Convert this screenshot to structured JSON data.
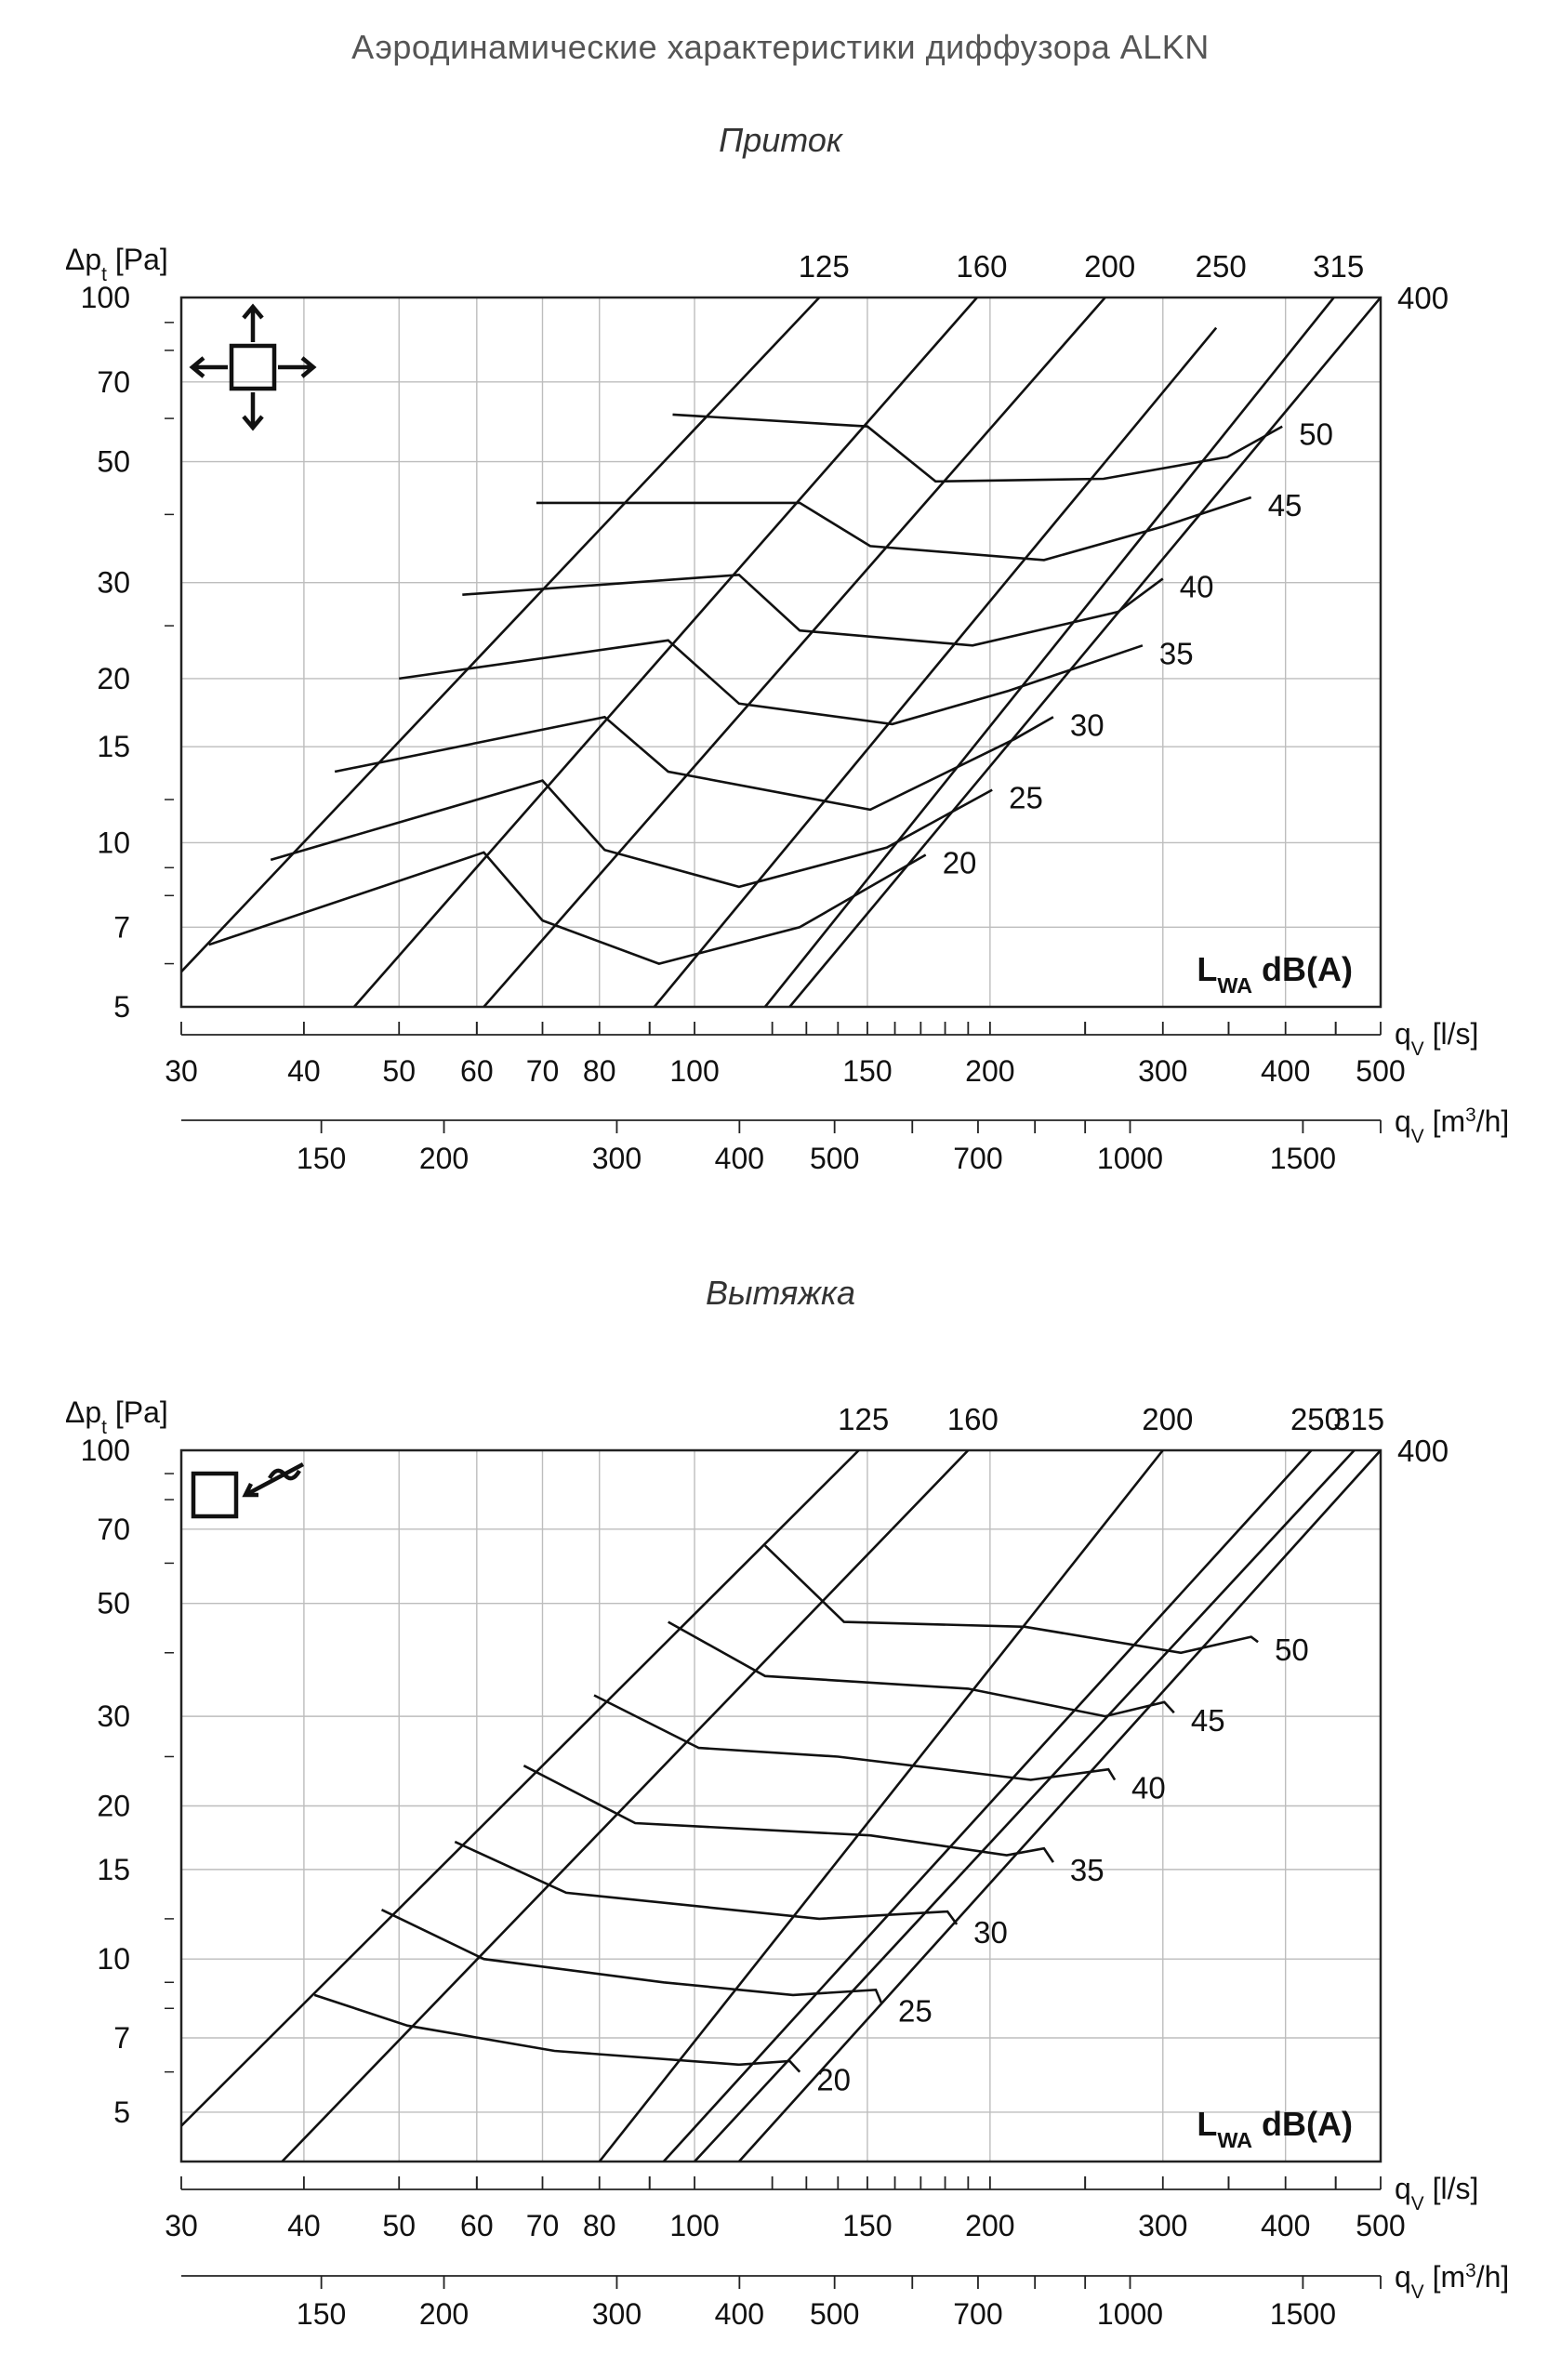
{
  "page": {
    "title": "Аэродинамические характеристики диффузора ALKN"
  },
  "chart_data": [
    {
      "type": "line",
      "subtitle": "Приток",
      "ylabel_main": "Δp",
      "ylabel_sub": "t",
      "ylabel_unit": " [Pa]",
      "xlabel_ls": "q",
      "xlabel_ls_sub": "V",
      "xlabel_ls_unit": " [l/s]",
      "xlabel_m3h": "q",
      "xlabel_m3h_sub": "V",
      "xlabel_m3h_unit_pre": " [m",
      "xlabel_m3h_sup": "3",
      "xlabel_m3h_unit_post": "/h]",
      "xscale": "log",
      "yscale": "log",
      "xlim": [
        30,
        500
      ],
      "ylim": [
        5,
        100
      ],
      "y_ticks": [
        5,
        7,
        10,
        15,
        20,
        30,
        50,
        70,
        100
      ],
      "x_ticks_ls": [
        30,
        40,
        50,
        60,
        70,
        80,
        100,
        150,
        200,
        300,
        400,
        500
      ],
      "x_ticks_m3h": [
        150,
        200,
        300,
        400,
        500,
        700,
        1000,
        1500
      ],
      "grid": true,
      "icon": "four-way-arrows-icon",
      "noise_label_main": "L",
      "noise_label_sub": "WA",
      "noise_label_unit": " dB(A)",
      "size_lines": [
        {
          "name": "125",
          "points": [
            [
              30,
              5.8
            ],
            [
              134,
              100
            ]
          ]
        },
        {
          "name": "160",
          "points": [
            [
              45,
              5
            ],
            [
              194,
              100
            ]
          ]
        },
        {
          "name": "200",
          "points": [
            [
              61,
              5
            ],
            [
              262,
              100
            ]
          ]
        },
        {
          "name": "250",
          "points": [
            [
              91,
              5
            ],
            [
              340,
              88
            ]
          ]
        },
        {
          "name": "315",
          "points": [
            [
              118,
              5
            ],
            [
              448,
              100
            ]
          ]
        },
        {
          "name": "400",
          "points": [
            [
              125,
              5
            ],
            [
              500,
              100
            ]
          ]
        }
      ],
      "noise_lines": [
        {
          "name": "20",
          "points": [
            [
              32,
              6.5
            ],
            [
              61,
              9.6
            ],
            [
              70,
              7.2
            ],
            [
              92,
              6
            ],
            [
              128,
              7
            ],
            [
              172,
              9.5
            ]
          ]
        },
        {
          "name": "25",
          "points": [
            [
              37,
              9.3
            ],
            [
              70,
              13
            ],
            [
              81,
              9.7
            ],
            [
              111,
              8.3
            ],
            [
              157,
              9.8
            ],
            [
              201,
              12.5
            ]
          ]
        },
        {
          "name": "30",
          "points": [
            [
              43,
              13.5
            ],
            [
              81,
              17
            ],
            [
              94,
              13.5
            ],
            [
              151,
              11.5
            ],
            [
              212,
              15.5
            ],
            [
              232,
              17
            ]
          ]
        },
        {
          "name": "35",
          "points": [
            [
              50,
              20
            ],
            [
              94,
              23.5
            ],
            [
              111,
              18
            ],
            [
              159,
              16.5
            ],
            [
              209,
              19
            ],
            [
              286,
              23
            ]
          ]
        },
        {
          "name": "40",
          "points": [
            [
              58,
              28.5
            ],
            [
              111,
              31
            ],
            [
              128,
              24.5
            ],
            [
              192,
              23
            ],
            [
              270,
              26.5
            ],
            [
              300,
              30.5
            ]
          ]
        },
        {
          "name": "45",
          "points": [
            [
              69,
              42
            ],
            [
              128,
              42
            ],
            [
              151,
              35
            ],
            [
              227,
              33
            ],
            [
              300,
              38
            ],
            [
              369,
              43
            ]
          ]
        },
        {
          "name": "50",
          "points": [
            [
              95,
              61
            ],
            [
              150,
              58
            ],
            [
              176,
              46
            ],
            [
              261,
              46.5
            ],
            [
              349,
              51
            ],
            [
              397,
              58
            ]
          ]
        }
      ]
    },
    {
      "type": "line",
      "subtitle": "Вытяжка",
      "ylabel_main": "Δp",
      "ylabel_sub": "t",
      "ylabel_unit": " [Pa]",
      "xlabel_ls": "q",
      "xlabel_ls_sub": "V",
      "xlabel_ls_unit": " [l/s]",
      "xlabel_m3h": "q",
      "xlabel_m3h_sub": "V",
      "xlabel_m3h_unit_pre": " [m",
      "xlabel_m3h_sup": "3",
      "xlabel_m3h_unit_post": "/h]",
      "xscale": "log",
      "yscale": "log",
      "xlim": [
        30,
        500
      ],
      "ylim": [
        4,
        100
      ],
      "y_ticks": [
        5,
        7,
        10,
        15,
        20,
        30,
        50,
        70,
        100
      ],
      "x_ticks_ls": [
        30,
        40,
        50,
        60,
        70,
        80,
        100,
        150,
        200,
        300,
        400,
        500
      ],
      "x_ticks_m3h": [
        150,
        200,
        300,
        400,
        500,
        700,
        1000,
        1500
      ],
      "grid": true,
      "icon": "exhaust-arrow-icon",
      "noise_label_main": "L",
      "noise_label_sub": "WA",
      "noise_label_unit": " dB(A)",
      "size_lines": [
        {
          "name": "125",
          "points": [
            [
              30,
              4.7
            ],
            [
              147,
              100
            ]
          ]
        },
        {
          "name": "160",
          "points": [
            [
              38,
              4
            ],
            [
              190,
              100
            ]
          ]
        },
        {
          "name": "200",
          "points": [
            [
              80,
              4
            ],
            [
              300,
              100
            ]
          ]
        },
        {
          "name": "250",
          "points": [
            [
              93,
              4
            ],
            [
              425,
              100
            ]
          ]
        },
        {
          "name": "315",
          "points": [
            [
              100,
              4
            ],
            [
              470,
              100
            ]
          ]
        },
        {
          "name": "400",
          "points": [
            [
              111,
              4
            ],
            [
              500,
              100
            ]
          ]
        }
      ],
      "noise_lines": [
        {
          "name": "20",
          "points": [
            [
              41,
              8.5
            ],
            [
              51,
              7.4
            ],
            [
              72,
              6.6
            ],
            [
              111,
              6.2
            ],
            [
              125,
              6.3
            ],
            [
              128,
              6
            ]
          ]
        },
        {
          "name": "25",
          "points": [
            [
              48,
              12.5
            ],
            [
              61,
              10
            ],
            [
              93,
              9
            ],
            [
              126,
              8.5
            ],
            [
              153,
              8.7
            ],
            [
              155,
              8.2
            ]
          ]
        },
        {
          "name": "30",
          "points": [
            [
              57,
              17
            ],
            [
              74,
              13.5
            ],
            [
              134,
              12
            ],
            [
              181,
              12.4
            ],
            [
              185,
              11.7
            ]
          ]
        },
        {
          "name": "35",
          "points": [
            [
              67,
              24
            ],
            [
              87,
              18.5
            ],
            [
              151,
              17.5
            ],
            [
              208,
              16
            ],
            [
              227,
              16.5
            ],
            [
              232,
              15.5
            ]
          ]
        },
        {
          "name": "40",
          "points": [
            [
              79,
              33
            ],
            [
              101,
              26
            ],
            [
              140,
              25
            ],
            [
              220,
              22.5
            ],
            [
              264,
              23.6
            ],
            [
              268,
              22.5
            ]
          ]
        },
        {
          "name": "45",
          "points": [
            [
              94,
              46
            ],
            [
              118,
              36
            ],
            [
              190,
              34
            ],
            [
              262,
              30
            ],
            [
              301,
              32
            ],
            [
              308,
              30.5
            ]
          ]
        },
        {
          "name": "50",
          "points": [
            [
              118,
              65
            ],
            [
              142,
              46
            ],
            [
              217,
              45
            ],
            [
              313,
              40
            ],
            [
              369,
              43
            ],
            [
              375,
              42
            ]
          ]
        }
      ]
    }
  ]
}
